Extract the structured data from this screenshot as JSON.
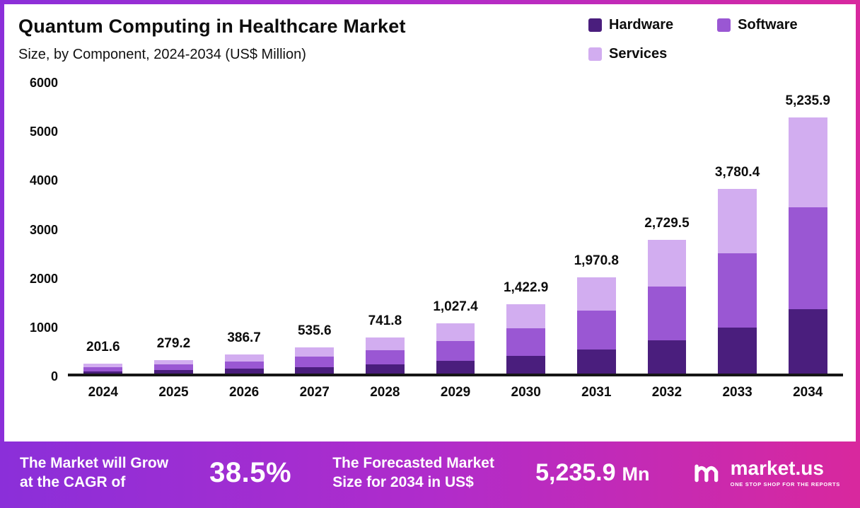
{
  "header": {
    "title": "Quantum Computing in Healthcare Market",
    "subtitle": "Size, by Component, 2024-2034 (US$ Million)"
  },
  "chart_data": {
    "type": "bar",
    "stacked": true,
    "title": "Quantum Computing in Healthcare Market",
    "subtitle": "Size, by Component, 2024-2034 (US$ Million)",
    "categories": [
      "2024",
      "2025",
      "2026",
      "2027",
      "2028",
      "2029",
      "2030",
      "2031",
      "2032",
      "2033",
      "2034"
    ],
    "totals": [
      201.6,
      279.2,
      386.7,
      535.6,
      741.8,
      1027.4,
      1422.9,
      1970.8,
      2729.5,
      3780.4,
      5235.9
    ],
    "total_labels": [
      "201.6",
      "279.2",
      "386.7",
      "535.6",
      "741.8",
      "1,027.4",
      "1,422.9",
      "1,970.8",
      "2,729.5",
      "3,780.4",
      "5,235.9"
    ],
    "series": [
      {
        "name": "Hardware",
        "color": "#4a1e7d",
        "values": [
          50.4,
          69.8,
          96.7,
          133.9,
          185.5,
          256.9,
          355.7,
          492.7,
          682.4,
          945.1,
          1309.0
        ]
      },
      {
        "name": "Software",
        "color": "#9a57d3",
        "values": [
          80.6,
          111.7,
          154.7,
          214.2,
          296.7,
          411.0,
          569.2,
          788.3,
          1091.8,
          1512.2,
          2094.4
        ]
      },
      {
        "name": "Services",
        "color": "#d2adf0",
        "values": [
          70.6,
          97.7,
          135.3,
          187.5,
          259.6,
          359.5,
          498.0,
          689.8,
          955.3,
          1323.1,
          1832.5
        ]
      }
    ],
    "ylim": [
      0,
      6000
    ],
    "yticks": [
      0,
      1000,
      2000,
      3000,
      4000,
      5000,
      6000
    ],
    "grid": false,
    "legend_position": "top-right"
  },
  "banner": {
    "cagr_line1": "The Market will Grow",
    "cagr_line2": "at the CAGR of",
    "cagr_value": "38.5%",
    "forecast_line1": "The Forecasted Market",
    "forecast_line2": "Size for 2034 in US$",
    "forecast_value": "5,235.9",
    "forecast_unit": "Mn",
    "logo_text": "market.us",
    "logo_tagline": "ONE STOP SHOP FOR THE REPORTS"
  },
  "colors": {
    "hardware": "#4a1e7d",
    "software": "#9a57d3",
    "services": "#d2adf0",
    "banner_gradient_start": "#8b2fd9",
    "banner_gradient_mid": "#b02ccb",
    "banner_gradient_end": "#d8289e",
    "axis": "#161616",
    "text": "#0d0d0d"
  }
}
